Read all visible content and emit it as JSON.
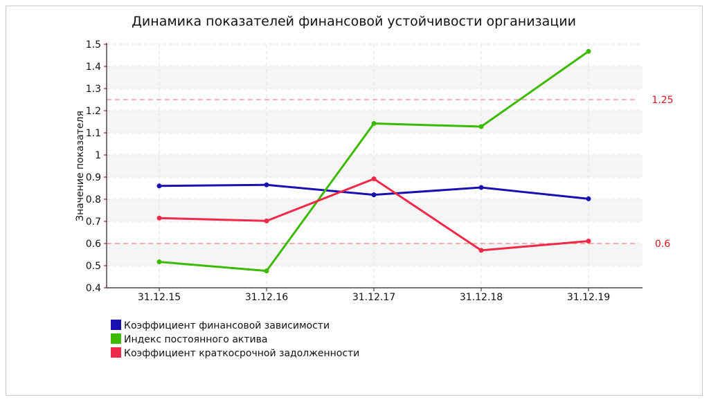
{
  "chart_data": {
    "type": "line",
    "title": "Динамика показателей финансовой устойчивости организации",
    "xlabel": "",
    "ylabel": "Значение показателя",
    "categories": [
      "31.12.15",
      "31.12.16",
      "31.12.17",
      "31.12.18",
      "31.12.19"
    ],
    "ylim": [
      0.4,
      1.5
    ],
    "yticks": [
      0.4,
      0.5,
      0.6,
      0.7,
      0.8,
      0.9,
      1,
      1.1,
      1.2,
      1.3,
      1.4,
      1.5
    ],
    "ytick_labels": [
      "0.4",
      "0.5",
      "0.6",
      "0.7",
      "0.8",
      "0.9",
      "1",
      "1.1",
      "1.2",
      "1.3",
      "1.4",
      "1.5"
    ],
    "grid": true,
    "legend_position": "bottom-left",
    "series": [
      {
        "name": "Коэффициент финансовой зависимости",
        "color": "#1a0fb0",
        "values": [
          0.86,
          0.865,
          0.82,
          0.853,
          0.802
        ]
      },
      {
        "name": "Индекс постоянного актива",
        "color": "#3cba00",
        "values": [
          0.517,
          0.476,
          1.142,
          1.128,
          1.468
        ]
      },
      {
        "name": "Коэффициент краткосрочной задолженности",
        "color": "#f0284a",
        "values": [
          0.715,
          0.702,
          0.892,
          0.569,
          0.611
        ]
      }
    ],
    "thresholds": [
      {
        "value": 1.25,
        "label": "1.25",
        "color": "#f08080"
      },
      {
        "value": 0.6,
        "label": "0.6",
        "color": "#f08080"
      }
    ]
  }
}
